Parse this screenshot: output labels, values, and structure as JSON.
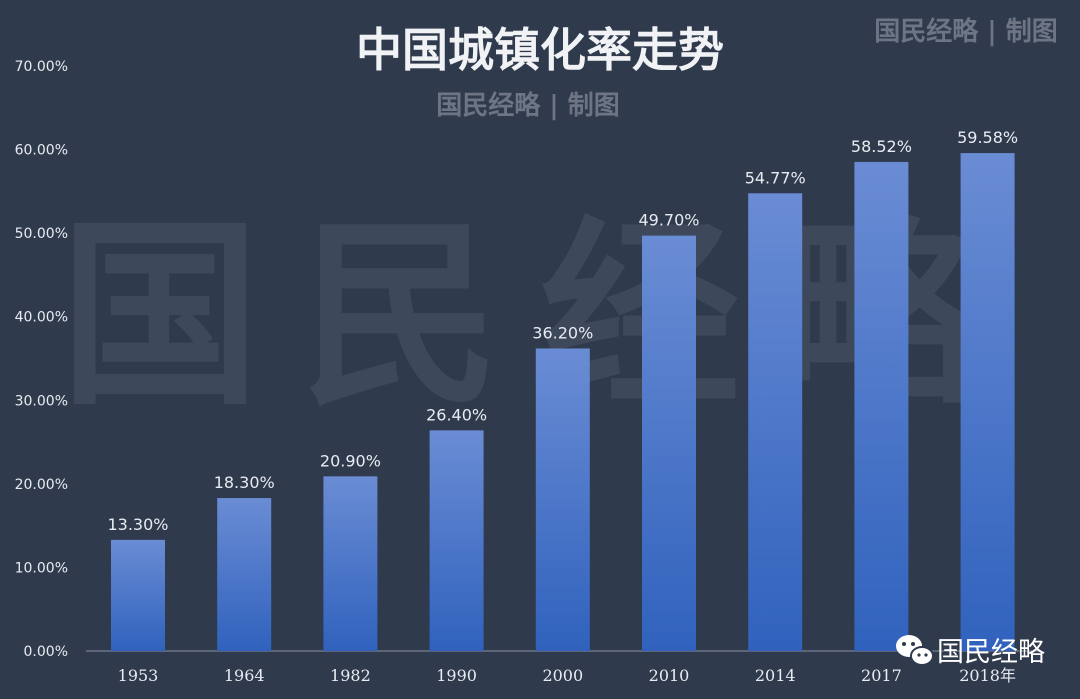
{
  "chart_data": {
    "type": "bar",
    "title": "中国城镇化率走势",
    "subtitle": "国民经略 | 制图",
    "corner_credit": "国民经略 | 制图",
    "watermark": "国民经略",
    "categories": [
      "1953",
      "1964",
      "1982",
      "1990",
      "2000",
      "2010",
      "2014",
      "2017",
      "2018年"
    ],
    "values": [
      13.3,
      18.3,
      20.9,
      26.4,
      36.2,
      49.7,
      54.77,
      58.52,
      59.58
    ],
    "value_labels": [
      "13.30%",
      "18.30%",
      "20.90%",
      "26.40%",
      "36.20%",
      "49.70%",
      "54.77%",
      "58.52%",
      "59.58%"
    ],
    "y_ticks": [
      "0.00%",
      "10.00%",
      "20.00%",
      "30.00%",
      "40.00%",
      "50.00%",
      "60.00%",
      "70.00%"
    ],
    "ylim": [
      0,
      70
    ],
    "xlabel": "",
    "ylabel": "",
    "grid": false,
    "colors": {
      "background": "#2f3a4c",
      "bar_top": "#6a8cd4",
      "bar_bottom": "#3062bd",
      "text": "#e8ecf2",
      "watermark": "#4a5468"
    }
  },
  "footer": {
    "logo_icon": "wechat-icon",
    "brand": "国民经略"
  }
}
